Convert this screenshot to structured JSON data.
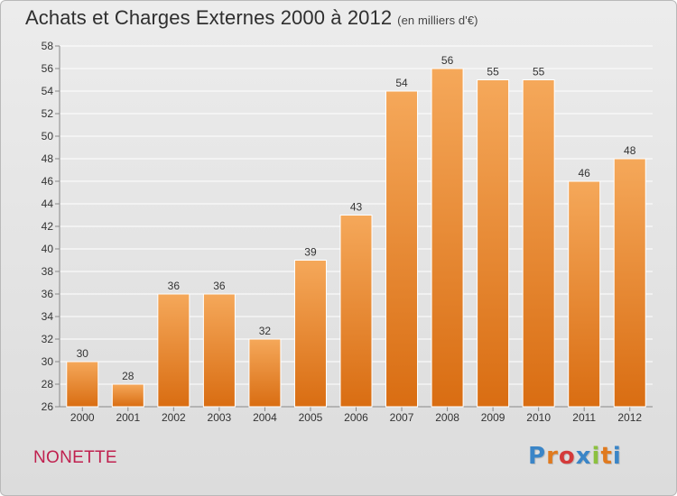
{
  "title": "Achats et Charges Externes 2000 à 2012",
  "unit_note": "(en milliers d'€)",
  "commune": "NONETTE",
  "brand": "Proxiti",
  "colors": {
    "bar_top": "#f5a85a",
    "bar_bottom": "#d96d12",
    "grid": "#ffffff",
    "commune_text": "#c0214f",
    "brand_letters": [
      "#3a85c7",
      "#e07a1f",
      "#d43a3a",
      "#3a85c7",
      "#8cc13f",
      "#e07a1f",
      "#3a85c7"
    ]
  },
  "chart_data": {
    "type": "bar",
    "title": "Achats et Charges Externes 2000 à 2012",
    "subtitle": "(en milliers d'€)",
    "categories": [
      "2000",
      "2001",
      "2002",
      "2003",
      "2004",
      "2005",
      "2006",
      "2007",
      "2008",
      "2009",
      "2010",
      "2011",
      "2012"
    ],
    "values": [
      30,
      28,
      36,
      36,
      32,
      39,
      43,
      54,
      56,
      55,
      55,
      46,
      48
    ],
    "ylim": [
      26,
      58
    ],
    "yticks": [
      26,
      28,
      30,
      32,
      34,
      36,
      38,
      40,
      42,
      44,
      46,
      48,
      50,
      52,
      54,
      56,
      58
    ],
    "grid": true,
    "data_labels": true
  }
}
